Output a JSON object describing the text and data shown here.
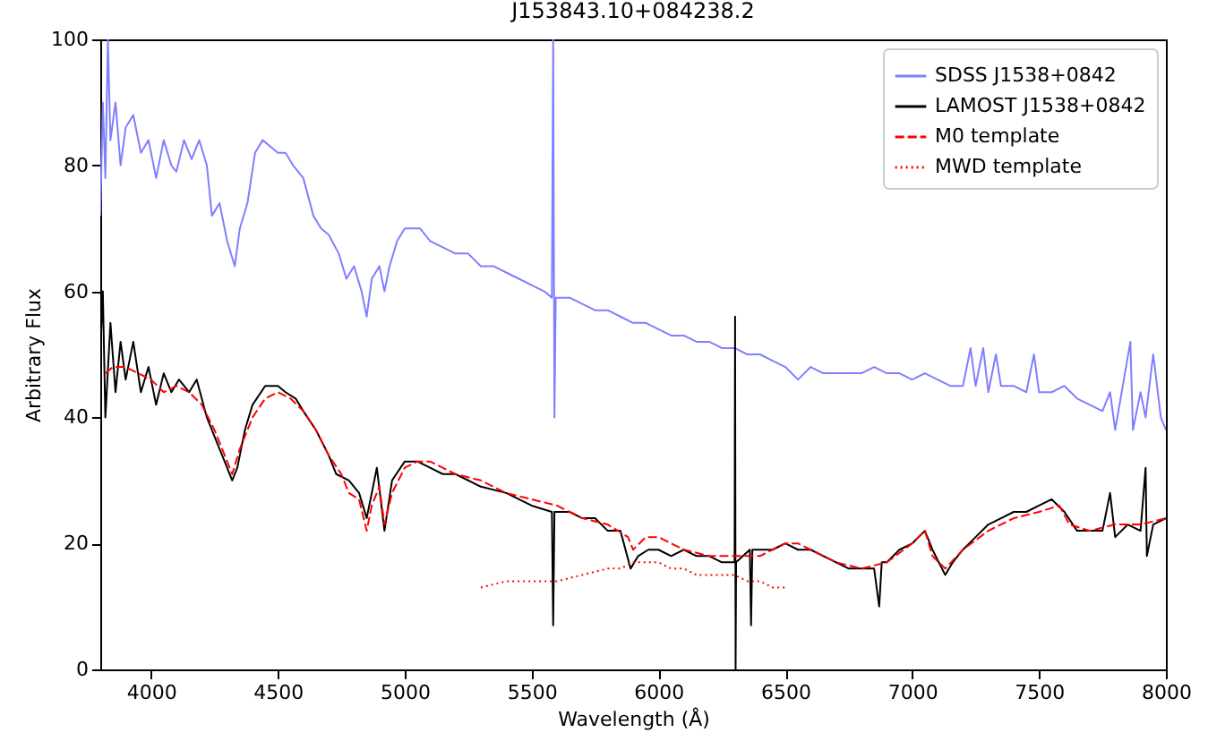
{
  "chart_data": {
    "type": "line",
    "title": "J153843.10+084238.2",
    "xlabel": "Wavelength (Å)",
    "ylabel": "Arbitrary Flux",
    "xlim": [
      3800,
      8000
    ],
    "xticks": [
      4000,
      4500,
      5000,
      5500,
      6000,
      6500,
      7000,
      7500,
      8000
    ],
    "ylim": [
      0,
      100
    ],
    "yticks": [
      0,
      20,
      40,
      60,
      80,
      100
    ],
    "legend": "top right",
    "series": [
      {
        "name": "SDSS J1538+0842",
        "color": "#7f7fff",
        "line_style": "solid",
        "x": [
          3800,
          3810,
          3820,
          3830,
          3840,
          3860,
          3880,
          3900,
          3930,
          3960,
          3990,
          4020,
          4050,
          4080,
          4100,
          4130,
          4160,
          4190,
          4220,
          4240,
          4270,
          4300,
          4330,
          4350,
          4380,
          4410,
          4440,
          4470,
          4500,
          4530,
          4560,
          4600,
          4640,
          4670,
          4700,
          4740,
          4770,
          4800,
          4830,
          4850,
          4870,
          4900,
          4920,
          4940,
          4970,
          5000,
          5030,
          5060,
          5100,
          5150,
          5200,
          5250,
          5300,
          5350,
          5400,
          5450,
          5500,
          5550,
          5580,
          5585,
          5590,
          5595,
          5650,
          5700,
          5750,
          5800,
          5850,
          5900,
          5950,
          6000,
          6050,
          6100,
          6150,
          6200,
          6250,
          6300,
          6350,
          6400,
          6450,
          6500,
          6550,
          6600,
          6650,
          6700,
          6750,
          6800,
          6850,
          6900,
          6950,
          7000,
          7050,
          7100,
          7150,
          7200,
          7230,
          7250,
          7280,
          7300,
          7330,
          7350,
          7400,
          7450,
          7480,
          7500,
          7550,
          7600,
          7650,
          7700,
          7750,
          7780,
          7800,
          7830,
          7860,
          7870,
          7900,
          7920,
          7950,
          7980,
          8000
        ],
        "values": [
          72,
          90,
          78,
          100,
          84,
          90,
          80,
          86,
          88,
          82,
          84,
          78,
          84,
          80,
          79,
          84,
          81,
          84,
          80,
          72,
          74,
          68,
          64,
          70,
          74,
          82,
          84,
          83,
          82,
          82,
          80,
          78,
          72,
          70,
          69,
          66,
          62,
          64,
          60,
          56,
          62,
          64,
          60,
          64,
          68,
          70,
          70,
          70,
          68,
          67,
          66,
          66,
          64,
          64,
          63,
          62,
          61,
          60,
          59,
          100,
          40,
          59,
          59,
          58,
          57,
          57,
          56,
          55,
          55,
          54,
          53,
          53,
          52,
          52,
          51,
          51,
          50,
          50,
          49,
          48,
          46,
          48,
          47,
          47,
          47,
          47,
          48,
          47,
          47,
          46,
          47,
          46,
          45,
          45,
          51,
          45,
          51,
          44,
          50,
          45,
          45,
          44,
          50,
          44,
          44,
          45,
          43,
          42,
          41,
          44,
          38,
          45,
          52,
          38,
          44,
          40,
          50,
          40,
          38
        ]
      },
      {
        "name": "LAMOST J1538+0842",
        "color": "#000000",
        "line_style": "solid",
        "x": [
          3800,
          3810,
          3820,
          3840,
          3860,
          3880,
          3900,
          3930,
          3960,
          3990,
          4020,
          4050,
          4080,
          4110,
          4150,
          4180,
          4220,
          4260,
          4300,
          4320,
          4340,
          4370,
          4400,
          4450,
          4500,
          4530,
          4570,
          4600,
          4650,
          4700,
          4730,
          4780,
          4820,
          4850,
          4870,
          4890,
          4920,
          4950,
          5000,
          5050,
          5100,
          5150,
          5200,
          5300,
          5400,
          5500,
          5580,
          5585,
          5590,
          5650,
          5700,
          5750,
          5800,
          5850,
          5890,
          5920,
          5960,
          6000,
          6050,
          6100,
          6150,
          6200,
          6250,
          6300,
          6302,
          6304,
          6306,
          6360,
          6365,
          6370,
          6400,
          6450,
          6500,
          6550,
          6600,
          6650,
          6700,
          6750,
          6800,
          6850,
          6870,
          6880,
          6900,
          6950,
          7000,
          7050,
          7080,
          7130,
          7160,
          7200,
          7250,
          7300,
          7350,
          7400,
          7450,
          7500,
          7550,
          7600,
          7650,
          7700,
          7750,
          7780,
          7800,
          7850,
          7900,
          7920,
          7925,
          7950,
          8000
        ],
        "values": [
          50,
          60,
          40,
          55,
          44,
          52,
          46,
          52,
          44,
          48,
          42,
          47,
          44,
          46,
          44,
          46,
          40,
          36,
          32,
          30,
          32,
          38,
          42,
          45,
          45,
          44,
          43,
          41,
          38,
          34,
          31,
          30,
          28,
          24,
          28,
          32,
          22,
          30,
          33,
          33,
          32,
          31,
          31,
          29,
          28,
          26,
          25,
          7,
          25,
          25,
          24,
          24,
          22,
          22,
          16,
          18,
          19,
          19,
          18,
          19,
          18,
          18,
          17,
          17,
          56,
          0,
          17,
          19,
          7,
          19,
          19,
          19,
          20,
          19,
          19,
          18,
          17,
          16,
          16,
          16,
          10,
          17,
          17,
          19,
          20,
          22,
          19,
          15,
          17,
          19,
          21,
          23,
          24,
          25,
          25,
          26,
          27,
          25,
          22,
          22,
          22,
          28,
          21,
          23,
          22,
          32,
          18,
          23,
          24
        ]
      },
      {
        "name": "M0 template",
        "color": "#ff0000",
        "line_style": "dashed",
        "x": [
          3820,
          3850,
          3900,
          3950,
          4000,
          4050,
          4100,
          4150,
          4200,
          4250,
          4300,
          4320,
          4350,
          4400,
          4450,
          4500,
          4550,
          4600,
          4650,
          4700,
          4750,
          4780,
          4820,
          4850,
          4870,
          4900,
          4920,
          4950,
          5000,
          5050,
          5100,
          5150,
          5200,
          5300,
          5400,
          5500,
          5600,
          5700,
          5800,
          5880,
          5900,
          5950,
          6000,
          6050,
          6100,
          6200,
          6300,
          6400,
          6500,
          6550,
          6600,
          6700,
          6800,
          6900,
          7000,
          7050,
          7080,
          7130,
          7200,
          7300,
          7400,
          7500,
          7580,
          7620,
          7700,
          7800,
          7900,
          8000
        ],
        "values": [
          47,
          48,
          48,
          47,
          46,
          44,
          45,
          44,
          42,
          38,
          33,
          31,
          35,
          40,
          43,
          44,
          43,
          41,
          38,
          34,
          31,
          28,
          27,
          22,
          26,
          29,
          23,
          28,
          32,
          33,
          33,
          32,
          31,
          30,
          28,
          27,
          26,
          24,
          23,
          21,
          19,
          21,
          21,
          20,
          19,
          18,
          18,
          18,
          20,
          20,
          19,
          17,
          16,
          17,
          20,
          22,
          18,
          16,
          19,
          22,
          24,
          25,
          26,
          23,
          22,
          23,
          23,
          24
        ]
      },
      {
        "name": "MWD template",
        "color": "#ff0000",
        "line_style": "dotted",
        "x": [
          5300,
          5400,
          5500,
          5600,
          5700,
          5800,
          5850,
          5900,
          5950,
          6000,
          6050,
          6100,
          6150,
          6200,
          6300,
          6350,
          6400,
          6450,
          6500
        ],
        "values": [
          13,
          14,
          14,
          14,
          15,
          16,
          16,
          17,
          17,
          17,
          16,
          16,
          15,
          15,
          15,
          14,
          14,
          13,
          13
        ]
      }
    ]
  }
}
